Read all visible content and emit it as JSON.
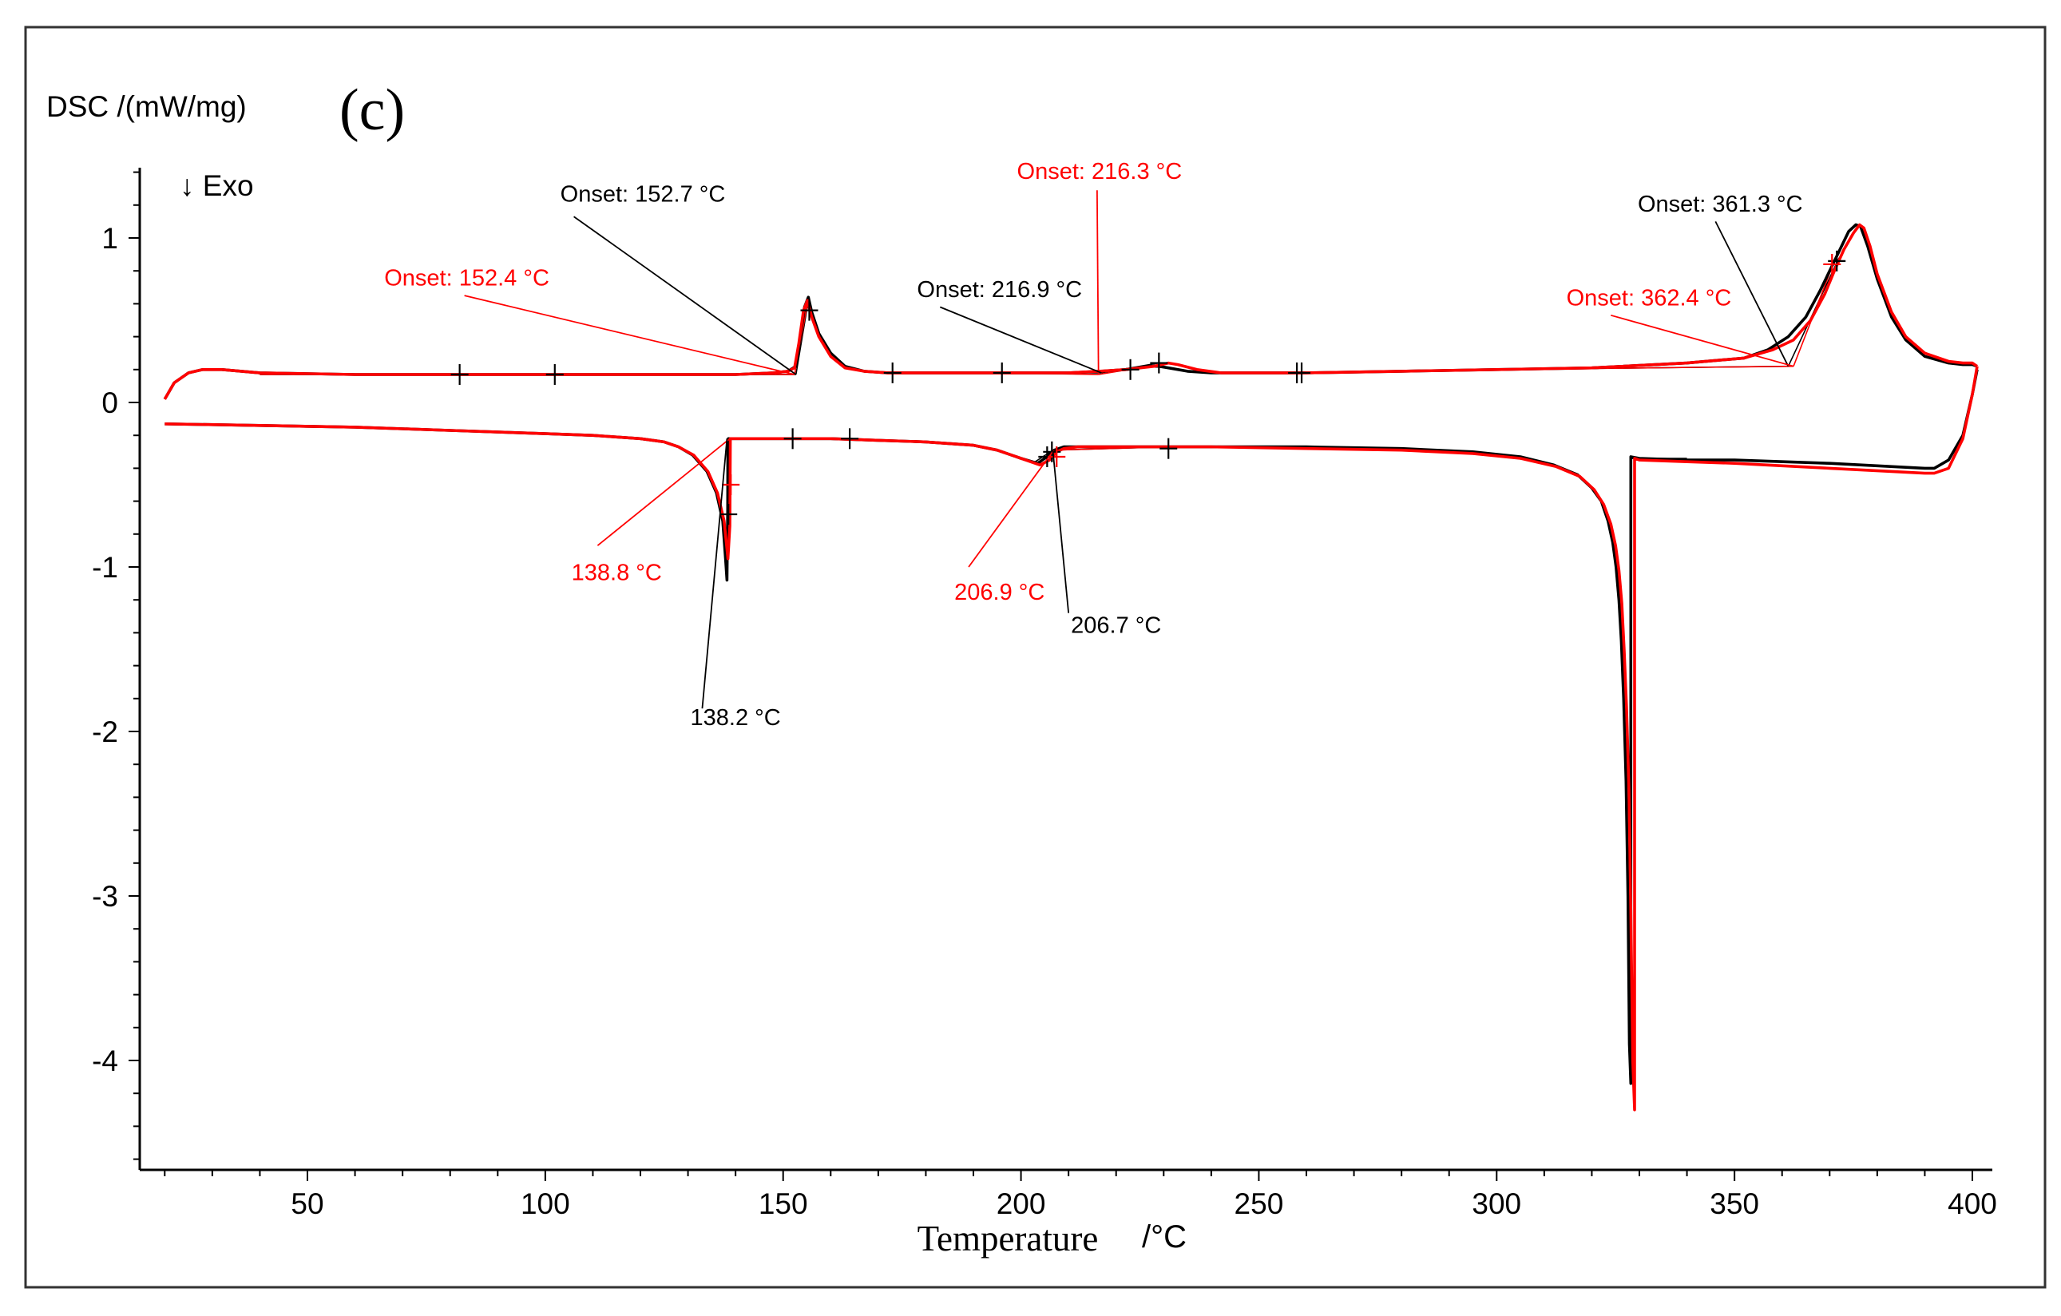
{
  "chart_data": {
    "type": "line",
    "panel_label": "(c)",
    "ylabel": "DSC /(mW/mg)",
    "xlabel": "Temperature",
    "xunit": "/°C",
    "exo_label": "↓ Exo",
    "xlim": [
      15,
      405
    ],
    "ylim": [
      -4.7,
      1.45
    ],
    "xticks": [
      50,
      100,
      150,
      200,
      250,
      300,
      350,
      400
    ],
    "yticks": [
      1,
      0,
      -1,
      -2,
      -3,
      -4
    ],
    "colors": {
      "run1": "#000000",
      "run2": "#ff0000"
    },
    "series": [
      {
        "name": "heating-black",
        "color": "#000000",
        "x": [
          20,
          22,
          25,
          28,
          32,
          40,
          60,
          80,
          100,
          120,
          140,
          148,
          151,
          152.7,
          153.5,
          154.5,
          155.3,
          156,
          157.5,
          160,
          163,
          167,
          172,
          180,
          190,
          200,
          210,
          216.9,
          222,
          227,
          229,
          231,
          235,
          240,
          250,
          260,
          280,
          300,
          320,
          340,
          352,
          357,
          361.3,
          365,
          368,
          370,
          372,
          374,
          375.5,
          376.5,
          378,
          380,
          383,
          386,
          390,
          395,
          398,
          400,
          401
        ],
        "y": [
          0.02,
          0.12,
          0.18,
          0.2,
          0.2,
          0.18,
          0.17,
          0.17,
          0.17,
          0.17,
          0.17,
          0.18,
          0.19,
          0.22,
          0.38,
          0.58,
          0.64,
          0.55,
          0.42,
          0.3,
          0.22,
          0.19,
          0.18,
          0.18,
          0.18,
          0.18,
          0.18,
          0.19,
          0.2,
          0.22,
          0.22,
          0.21,
          0.19,
          0.18,
          0.18,
          0.18,
          0.19,
          0.2,
          0.21,
          0.24,
          0.27,
          0.32,
          0.4,
          0.52,
          0.68,
          0.8,
          0.92,
          1.04,
          1.08,
          1.07,
          0.95,
          0.75,
          0.52,
          0.38,
          0.28,
          0.24,
          0.23,
          0.23,
          0.22
        ]
      },
      {
        "name": "heating-red",
        "color": "#ff0000",
        "x": [
          20,
          22,
          25,
          28,
          32,
          40,
          60,
          80,
          100,
          120,
          140,
          148,
          151,
          152.4,
          153.3,
          154.3,
          155.1,
          156,
          157.5,
          160,
          163,
          167,
          172,
          180,
          190,
          200,
          210,
          216.3,
          222,
          228,
          231,
          233,
          237,
          242,
          250,
          260,
          280,
          300,
          320,
          340,
          352,
          358,
          362.4,
          366,
          369,
          371,
          373,
          375,
          376.3,
          377.2,
          378.5,
          380,
          383,
          386,
          390,
          395,
          398,
          400,
          401
        ],
        "y": [
          0.02,
          0.12,
          0.18,
          0.2,
          0.2,
          0.18,
          0.17,
          0.17,
          0.17,
          0.17,
          0.17,
          0.18,
          0.19,
          0.21,
          0.36,
          0.56,
          0.62,
          0.52,
          0.4,
          0.28,
          0.21,
          0.19,
          0.18,
          0.18,
          0.18,
          0.18,
          0.18,
          0.19,
          0.2,
          0.22,
          0.24,
          0.23,
          0.2,
          0.18,
          0.18,
          0.18,
          0.19,
          0.2,
          0.21,
          0.24,
          0.27,
          0.32,
          0.38,
          0.5,
          0.66,
          0.8,
          0.93,
          1.03,
          1.08,
          1.06,
          0.95,
          0.78,
          0.55,
          0.4,
          0.3,
          0.25,
          0.24,
          0.24,
          0.22
        ]
      },
      {
        "name": "cooling-black",
        "color": "#000000",
        "x": [
          401,
          400,
          398,
          395,
          392,
          390,
          370,
          350,
          340,
          330,
          328.2,
          328.2,
          327.9,
          327.6,
          327.2,
          326.7,
          326.2,
          325.7,
          325.1,
          324.4,
          323.4,
          322,
          320,
          317,
          312,
          305,
          295,
          280,
          260,
          240,
          230,
          220,
          212,
          209,
          207,
          205.5,
          203.5,
          200,
          195,
          190,
          180,
          170,
          160,
          150,
          145,
          141,
          139.5,
          138.7,
          138.5,
          138.2,
          137.9,
          137.3,
          136,
          134,
          131,
          128,
          125,
          120,
          110,
          100,
          80,
          60,
          40,
          20
        ],
        "y": [
          0.2,
          0.05,
          -0.2,
          -0.35,
          -0.4,
          -0.4,
          -0.37,
          -0.35,
          -0.35,
          -0.34,
          -0.33,
          -4.14,
          -3.9,
          -3.0,
          -2.3,
          -1.8,
          -1.45,
          -1.2,
          -1.0,
          -0.85,
          -0.72,
          -0.6,
          -0.52,
          -0.44,
          -0.38,
          -0.33,
          -0.3,
          -0.28,
          -0.27,
          -0.27,
          -0.27,
          -0.27,
          -0.27,
          -0.27,
          -0.29,
          -0.33,
          -0.37,
          -0.34,
          -0.29,
          -0.26,
          -0.24,
          -0.23,
          -0.22,
          -0.22,
          -0.22,
          -0.22,
          -0.22,
          -0.22,
          -0.22,
          -1.08,
          -0.95,
          -0.72,
          -0.55,
          -0.42,
          -0.32,
          -0.27,
          -0.24,
          -0.22,
          -0.2,
          -0.19,
          -0.17,
          -0.15,
          -0.14,
          -0.13
        ]
      },
      {
        "name": "cooling-red",
        "color": "#ff0000",
        "x": [
          401,
          400,
          398,
          395,
          392,
          390,
          370,
          350,
          340,
          330,
          329,
          329,
          328.6,
          328.2,
          327.8,
          327.3,
          326.8,
          326.3,
          325.7,
          325,
          324,
          322.5,
          320.5,
          317.5,
          312.5,
          305,
          295,
          280,
          260,
          240,
          230,
          220,
          212,
          209,
          207.5,
          206,
          204,
          200,
          195,
          190,
          180,
          170,
          160,
          150,
          145,
          141,
          139.8,
          139.1,
          138.9,
          138.8,
          138.4,
          137.6,
          136.2,
          134.2,
          131.2,
          128,
          125,
          120,
          110,
          100,
          80,
          60,
          40,
          20
        ],
        "y": [
          0.22,
          0.05,
          -0.22,
          -0.4,
          -0.43,
          -0.43,
          -0.4,
          -0.37,
          -0.36,
          -0.35,
          -0.34,
          -4.3,
          -4.0,
          -3.1,
          -2.35,
          -1.85,
          -1.5,
          -1.22,
          -1.02,
          -0.87,
          -0.74,
          -0.62,
          -0.53,
          -0.45,
          -0.39,
          -0.34,
          -0.31,
          -0.29,
          -0.28,
          -0.27,
          -0.27,
          -0.27,
          -0.27,
          -0.28,
          -0.3,
          -0.35,
          -0.38,
          -0.34,
          -0.29,
          -0.26,
          -0.24,
          -0.23,
          -0.22,
          -0.22,
          -0.22,
          -0.22,
          -0.22,
          -0.22,
          -0.22,
          -0.75,
          -0.95,
          -0.72,
          -0.55,
          -0.42,
          -0.32,
          -0.27,
          -0.24,
          -0.22,
          -0.2,
          -0.19,
          -0.17,
          -0.15,
          -0.14,
          -0.13
        ]
      }
    ],
    "cross_markers": [
      {
        "color": "#000000",
        "x": [
          82,
          102,
          155.5,
          173,
          196,
          223,
          229,
          258,
          259,
          371.5,
          152,
          164,
          138.5,
          205.5,
          206.5,
          231
        ],
        "y": [
          0.17,
          0.17,
          0.56,
          0.18,
          0.18,
          0.2,
          0.24,
          0.18,
          0.18,
          0.86,
          -0.22,
          -0.22,
          -0.68,
          -0.33,
          -0.3,
          -0.28
        ]
      },
      {
        "color": "#ff0000",
        "x": [
          370.5,
          139,
          207.5
        ],
        "y": [
          0.84,
          -0.5,
          -0.33
        ]
      }
    ],
    "onset_constructions": [
      {
        "color": "#000000",
        "base": [
          [
            40,
            0.17
          ],
          [
            152.7,
            0.17
          ]
        ],
        "tangent": [
          [
            152.7,
            0.17
          ],
          [
            155.3,
            0.62
          ]
        ]
      },
      {
        "color": "#ff0000",
        "base": [
          [
            40,
            0.17
          ],
          [
            152.4,
            0.17
          ]
        ],
        "tangent": [
          [
            152.4,
            0.17
          ],
          [
            155.1,
            0.6
          ]
        ]
      },
      {
        "color": "#000000",
        "base": [
          [
            196,
            0.18
          ],
          [
            216.9,
            0.18
          ]
        ],
        "tangent": [
          [
            216.9,
            0.18
          ],
          [
            229,
            0.24
          ]
        ]
      },
      {
        "color": "#ff0000",
        "base": [
          [
            196,
            0.18
          ],
          [
            216.3,
            0.17
          ]
        ],
        "tangent": [
          [
            216.3,
            0.17
          ],
          [
            231,
            0.24
          ]
        ]
      },
      {
        "color": "#000000",
        "base": [
          [
            300,
            0.2
          ],
          [
            361.3,
            0.22
          ]
        ],
        "tangent": [
          [
            361.3,
            0.22
          ],
          [
            372,
            0.88
          ]
        ]
      },
      {
        "color": "#ff0000",
        "base": [
          [
            300,
            0.2
          ],
          [
            362.4,
            0.22
          ]
        ],
        "tangent": [
          [
            362.4,
            0.22
          ],
          [
            371,
            0.86
          ]
        ]
      },
      {
        "color": "#000000",
        "base": [
          [
            138.2,
            -1.08
          ],
          [
            138.2,
            -0.22
          ]
        ],
        "tangent": [
          [
            138.2,
            -0.22
          ],
          [
            160,
            -0.22
          ]
        ]
      },
      {
        "color": "#ff0000",
        "base": [
          [
            138.8,
            -0.8
          ],
          [
            138.8,
            -0.22
          ]
        ],
        "tangent": [
          [
            138.8,
            -0.22
          ],
          [
            152,
            -0.22
          ]
        ]
      },
      {
        "color": "#000000",
        "base": [
          [
            206.7,
            -0.29
          ],
          [
            231,
            -0.27
          ]
        ],
        "tangent": [
          [
            206.7,
            -0.29
          ],
          [
            203,
            -0.36
          ]
        ]
      },
      {
        "color": "#ff0000",
        "base": [
          [
            206.9,
            -0.29
          ],
          [
            231,
            -0.27
          ]
        ],
        "tangent": [
          [
            206.9,
            -0.29
          ],
          [
            203.5,
            -0.38
          ]
        ]
      },
      {
        "color": "#000000",
        "base": [
          [
            328.2,
            -0.34
          ],
          [
            328.2,
            -4.14
          ]
        ],
        "tangent": [
          [
            328.2,
            -0.34
          ],
          [
            340,
            -0.34
          ]
        ]
      },
      {
        "color": "#ff0000",
        "base": [
          [
            329,
            -0.35
          ],
          [
            329,
            -4.3
          ]
        ],
        "tangent": [
          [
            329,
            -0.35
          ],
          [
            340,
            -0.35
          ]
        ]
      }
    ],
    "annotations": [
      {
        "text": "Onset: 152.7 °C",
        "color": "#000000",
        "label_at": [
          120.5,
          1.22
        ],
        "anchor": "middle",
        "line_from": [
          106,
          1.13
        ],
        "line_to": [
          152.7,
          0.17
        ]
      },
      {
        "text": "Onset: 152.4 °C",
        "color": "#ff0000",
        "label_at": [
          83.5,
          0.71
        ],
        "anchor": "middle",
        "line_from": [
          83,
          0.65
        ],
        "line_to": [
          152.4,
          0.17
        ]
      },
      {
        "text": "Onset: 216.3 °C",
        "color": "#ff0000",
        "label_at": [
          216.5,
          1.36
        ],
        "anchor": "middle",
        "line_from": [
          216,
          1.29
        ],
        "line_to": [
          216.3,
          0.17
        ]
      },
      {
        "text": "Onset: 216.9 °C",
        "color": "#000000",
        "label_at": [
          195.5,
          0.64
        ],
        "anchor": "middle",
        "line_from": [
          183,
          0.58
        ],
        "line_to": [
          216.9,
          0.18
        ]
      },
      {
        "text": "Onset: 361.3 °C",
        "color": "#000000",
        "label_at": [
          347,
          1.16
        ],
        "anchor": "middle",
        "line_from": [
          346,
          1.1
        ],
        "line_to": [
          361.3,
          0.22
        ]
      },
      {
        "text": "Onset: 362.4 °C",
        "color": "#ff0000",
        "label_at": [
          332,
          0.59
        ],
        "anchor": "middle",
        "line_from": [
          324,
          0.53
        ],
        "line_to": [
          362.4,
          0.22
        ]
      },
      {
        "text": "138.8 °C",
        "color": "#ff0000",
        "label_at": [
          115,
          -1.08
        ],
        "anchor": "middle",
        "line_from": [
          111,
          -0.87
        ],
        "line_to": [
          138.8,
          -0.22
        ]
      },
      {
        "text": "138.2 °C",
        "color": "#000000",
        "label_at": [
          140,
          -1.96
        ],
        "anchor": "middle",
        "line_from": [
          133,
          -1.86
        ],
        "line_to": [
          138.2,
          -0.22
        ]
      },
      {
        "text": "206.9 °C",
        "color": "#ff0000",
        "label_at": [
          195.5,
          -1.2
        ],
        "anchor": "middle",
        "line_from": [
          189,
          -1.0
        ],
        "line_to": [
          206.9,
          -0.29
        ]
      },
      {
        "text": "206.7 °C",
        "color": "#000000",
        "label_at": [
          220,
          -1.4
        ],
        "anchor": "middle",
        "line_from": [
          210,
          -1.28
        ],
        "line_to": [
          206.7,
          -0.29
        ]
      }
    ]
  }
}
